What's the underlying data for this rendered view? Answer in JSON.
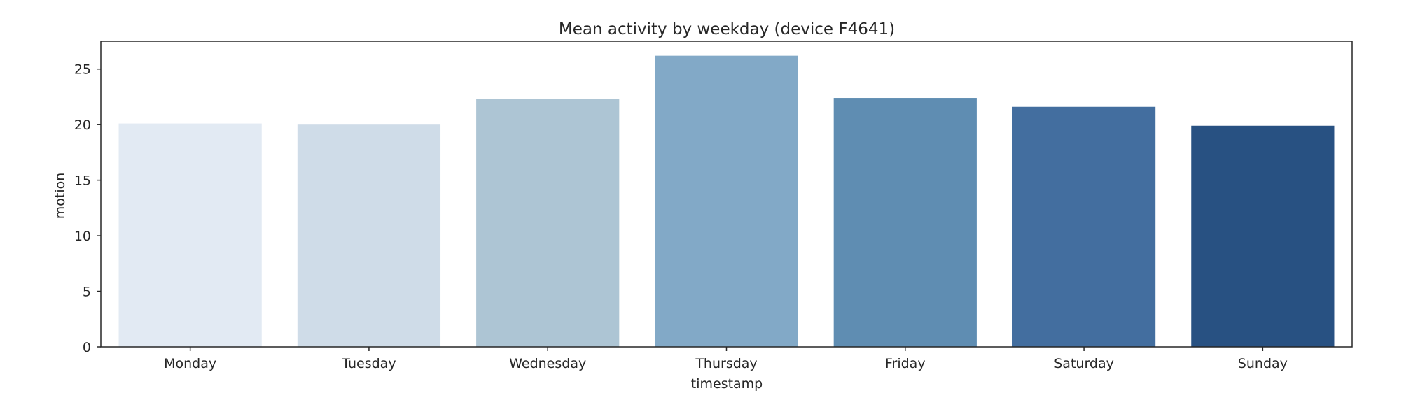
{
  "chart_data": {
    "type": "bar",
    "title": "Mean activity by weekday (device F4641)",
    "xlabel": "timestamp",
    "ylabel": "motion",
    "categories": [
      "Monday",
      "Tuesday",
      "Wednesday",
      "Thursday",
      "Friday",
      "Saturday",
      "Sunday"
    ],
    "values": [
      20.1,
      20.0,
      22.3,
      26.2,
      22.4,
      21.6,
      19.9
    ],
    "ylim": [
      0,
      27.5
    ],
    "yticks": [
      0,
      5,
      10,
      15,
      20,
      25
    ],
    "grid": false,
    "legend": "none",
    "colors": [
      "#e2eaf3",
      "#cfdce8",
      "#adc5d4",
      "#82a9c7",
      "#5f8db2",
      "#436e9f",
      "#285182"
    ]
  }
}
